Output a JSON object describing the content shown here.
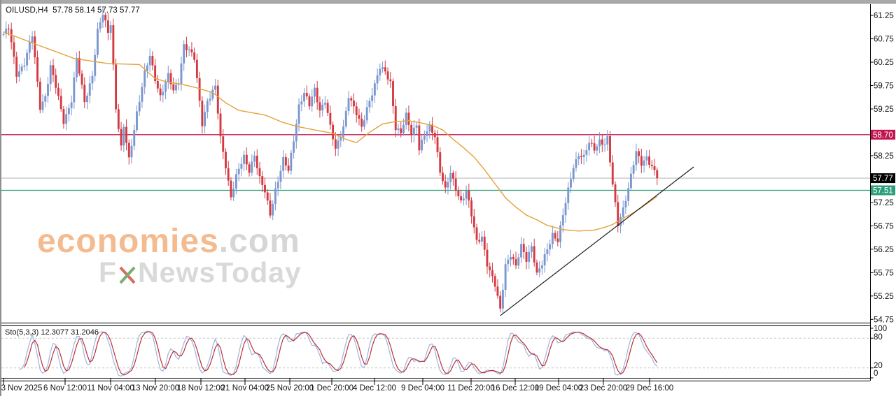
{
  "header": {
    "symbol": "OILUSD",
    "timeframe": "H4",
    "open": "57.78",
    "high": "58.14",
    "low": "57.73",
    "close": "57.77",
    "text": "OILUSD,H4  57.78 58.14 57.73 57.77"
  },
  "watermark": {
    "brand": "economies",
    "domain": ".com",
    "fx_prefix": "F",
    "fx_suffix": "NewsToday"
  },
  "stochastic": {
    "name": "Sto",
    "params": "5,3,3",
    "k_value": "12.3077",
    "d_value": "31.2046",
    "text": "Sto(5,3,3) 12.3077 31.2046"
  },
  "colors": {
    "bull": "#7b97d0",
    "bear": "#d43a42",
    "ma": "#e7a03a",
    "trendline": "#1a1a1a",
    "level_resistance": "#c2154f",
    "level_current_line": "#bcbcbc",
    "level_current_bg": "#000000",
    "level_support": "#2d9e7b",
    "sto_k": "#9db4de",
    "sto_d": "#b93036",
    "sto_level": "#c8c8c8",
    "axis_text": "#111111",
    "border": "#000000"
  },
  "chart_data": [
    {
      "type": "candlestick",
      "title": "OILUSD H4",
      "bars": 251,
      "y_axis": {
        "top_value": 61.49,
        "bottom_value": 54.68,
        "ticks": [
          61.25,
          60.75,
          60.25,
          59.75,
          59.25,
          58.25,
          57.25,
          56.75,
          56.25,
          55.75,
          55.25,
          54.75
        ]
      },
      "levels": [
        {
          "price": 58.7,
          "label": "58.70",
          "kind": "resistance"
        },
        {
          "price": 57.77,
          "label": "57.77",
          "kind": "current"
        },
        {
          "price": 57.51,
          "label": "57.51",
          "kind": "support"
        }
      ],
      "trendline": {
        "points": [
          [
            190,
            54.83
          ],
          [
            264,
            58.01
          ]
        ]
      },
      "moving_average": {
        "period_style": "smoothed",
        "points": [
          [
            0,
            60.9
          ],
          [
            13,
            60.62
          ],
          [
            27,
            60.33
          ],
          [
            40,
            60.22
          ],
          [
            52,
            60.2
          ],
          [
            58,
            59.9
          ],
          [
            63,
            59.82
          ],
          [
            68,
            59.78
          ],
          [
            74,
            59.7
          ],
          [
            80,
            59.6
          ],
          [
            85,
            59.38
          ],
          [
            90,
            59.22
          ],
          [
            100,
            59.12
          ],
          [
            107,
            58.96
          ],
          [
            112,
            58.88
          ],
          [
            119,
            58.8
          ],
          [
            126,
            58.73
          ],
          [
            131,
            58.6
          ],
          [
            135,
            58.53
          ],
          [
            140,
            58.75
          ],
          [
            145,
            58.93
          ],
          [
            150,
            58.98
          ],
          [
            155,
            59.0
          ],
          [
            159,
            58.96
          ],
          [
            164,
            58.9
          ],
          [
            168,
            58.8
          ],
          [
            172,
            58.6
          ],
          [
            176,
            58.42
          ],
          [
            180,
            58.22
          ],
          [
            184,
            57.95
          ],
          [
            188,
            57.65
          ],
          [
            192,
            57.35
          ],
          [
            196,
            57.15
          ],
          [
            200,
            56.98
          ],
          [
            204,
            56.88
          ],
          [
            208,
            56.76
          ],
          [
            214,
            56.67
          ],
          [
            220,
            56.64
          ],
          [
            226,
            56.66
          ],
          [
            230,
            56.72
          ],
          [
            233,
            56.78
          ],
          [
            236,
            56.88
          ],
          [
            240,
            57.0
          ],
          [
            244,
            57.14
          ],
          [
            247,
            57.26
          ],
          [
            250,
            57.38
          ]
        ]
      },
      "price_path": [
        [
          0,
          60.85
        ],
        [
          2,
          60.95
        ],
        [
          5,
          60.0
        ],
        [
          8,
          60.25
        ],
        [
          11,
          60.8
        ],
        [
          14,
          59.3
        ],
        [
          16,
          59.55
        ],
        [
          18,
          60.15
        ],
        [
          20,
          59.7
        ],
        [
          23,
          59.0
        ],
        [
          26,
          59.45
        ],
        [
          28,
          60.3
        ],
        [
          31,
          59.4
        ],
        [
          34,
          60.0
        ],
        [
          36,
          60.9
        ],
        [
          38,
          61.25
        ],
        [
          40,
          60.9
        ],
        [
          41,
          61.1
        ],
        [
          43,
          59.3
        ],
        [
          45,
          58.4
        ],
        [
          46,
          58.85
        ],
        [
          48,
          58.15
        ],
        [
          51,
          59.2
        ],
        [
          54,
          60.0
        ],
        [
          56,
          60.35
        ],
        [
          58,
          59.9
        ],
        [
          60,
          59.55
        ],
        [
          63,
          59.95
        ],
        [
          65,
          59.6
        ],
        [
          67,
          59.85
        ],
        [
          69,
          60.65
        ],
        [
          71,
          60.5
        ],
        [
          73,
          60.3
        ],
        [
          76,
          58.95
        ],
        [
          78,
          59.45
        ],
        [
          81,
          59.7
        ],
        [
          83,
          58.6
        ],
        [
          85,
          58.05
        ],
        [
          87,
          57.4
        ],
        [
          89,
          57.8
        ],
        [
          92,
          58.2
        ],
        [
          94,
          57.95
        ],
        [
          96,
          58.3
        ],
        [
          98,
          57.75
        ],
        [
          100,
          57.45
        ],
        [
          102,
          57.0
        ],
        [
          104,
          57.55
        ],
        [
          107,
          58.15
        ],
        [
          109,
          57.9
        ],
        [
          111,
          58.6
        ],
        [
          113,
          59.35
        ],
        [
          115,
          59.6
        ],
        [
          117,
          59.3
        ],
        [
          119,
          59.65
        ],
        [
          121,
          59.25
        ],
        [
          123,
          59.45
        ],
        [
          125,
          58.85
        ],
        [
          127,
          58.35
        ],
        [
          130,
          58.9
        ],
        [
          132,
          59.55
        ],
        [
          134,
          59.25
        ],
        [
          137,
          58.85
        ],
        [
          139,
          59.3
        ],
        [
          142,
          59.75
        ],
        [
          144,
          60.1
        ],
        [
          146,
          60.05
        ],
        [
          148,
          59.85
        ],
        [
          150,
          58.85
        ],
        [
          152,
          58.7
        ],
        [
          154,
          59.1
        ],
        [
          156,
          58.75
        ],
        [
          158,
          58.95
        ],
        [
          159,
          58.4
        ],
        [
          161,
          58.65
        ],
        [
          163,
          58.85
        ],
        [
          165,
          58.7
        ],
        [
          167,
          57.95
        ],
        [
          169,
          57.5
        ],
        [
          171,
          57.85
        ],
        [
          173,
          57.55
        ],
        [
          175,
          57.3
        ],
        [
          177,
          57.5
        ],
        [
          179,
          56.95
        ],
        [
          181,
          56.4
        ],
        [
          183,
          56.55
        ],
        [
          185,
          55.95
        ],
        [
          188,
          55.45
        ],
        [
          190,
          54.95
        ],
        [
          192,
          55.95
        ],
        [
          194,
          56.15
        ],
        [
          196,
          55.85
        ],
        [
          198,
          56.3
        ],
        [
          200,
          56.05
        ],
        [
          202,
          56.35
        ],
        [
          204,
          55.7
        ],
        [
          206,
          55.9
        ],
        [
          208,
          56.25
        ],
        [
          210,
          56.6
        ],
        [
          212,
          56.45
        ],
        [
          214,
          56.95
        ],
        [
          216,
          57.5
        ],
        [
          218,
          58.05
        ],
        [
          220,
          58.3
        ],
        [
          222,
          58.2
        ],
        [
          224,
          58.5
        ],
        [
          226,
          58.4
        ],
        [
          228,
          58.6
        ],
        [
          230,
          58.5
        ],
        [
          231,
          58.6
        ],
        [
          233,
          57.6
        ],
        [
          235,
          56.8
        ],
        [
          237,
          57.15
        ],
        [
          239,
          57.55
        ],
        [
          241,
          58.05
        ],
        [
          242,
          58.3
        ],
        [
          244,
          58.1
        ],
        [
          246,
          58.25
        ],
        [
          248,
          58.0
        ],
        [
          250,
          57.77
        ]
      ]
    },
    {
      "type": "line",
      "title": "Stochastic Oscillator",
      "params": {
        "k_period": 5,
        "slowing": 3,
        "d_period": 3
      },
      "last_values": {
        "k": 12.3077,
        "d": 31.2046
      },
      "levels": [
        80,
        20
      ],
      "y_ticks": [
        100,
        80,
        20,
        0
      ],
      "y_range": [
        0,
        100
      ]
    }
  ],
  "time_axis": {
    "labels": [
      {
        "text": "3 Nov 2025",
        "x": 5,
        "tx": 31
      },
      {
        "text": "6 Nov 12:00",
        "x": 93
      },
      {
        "text": "11 Nov 04:00",
        "x": 158
      },
      {
        "text": "13 Nov 20:00",
        "x": 222
      },
      {
        "text": "18 Nov 12:00",
        "x": 287
      },
      {
        "text": "21 Nov 04:00",
        "x": 350
      },
      {
        "text": "25 Nov 20:00",
        "x": 414
      },
      {
        "text": "1 Dec 20:00",
        "x": 474
      },
      {
        "text": "4 Dec 12:00",
        "x": 535
      },
      {
        "text": "9 Dec 04:00",
        "x": 604
      },
      {
        "text": "11 Dec 20:00",
        "x": 673
      },
      {
        "text": "16 Dec 12:00",
        "x": 736
      },
      {
        "text": "19 Dec 04:00",
        "x": 798
      },
      {
        "text": "23 Dec 20:00",
        "x": 862
      },
      {
        "text": "29 Dec 16:00",
        "x": 928
      }
    ]
  }
}
